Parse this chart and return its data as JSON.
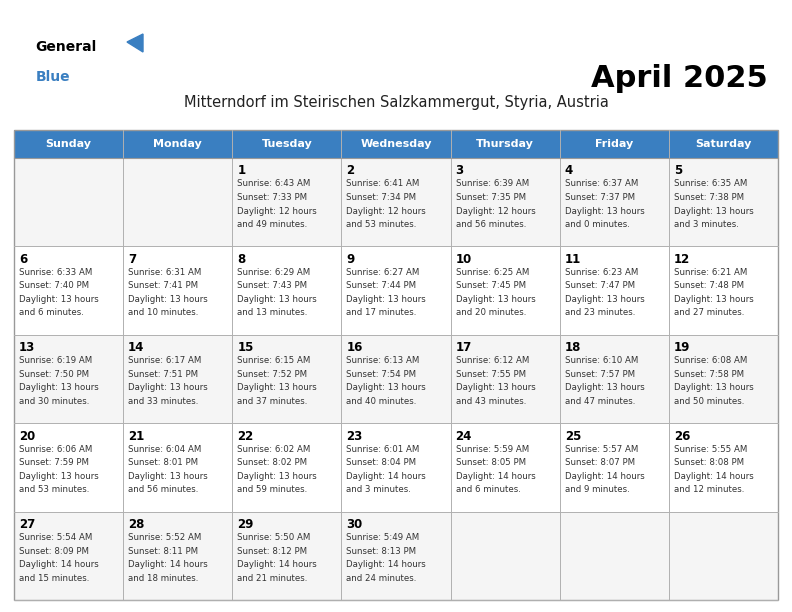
{
  "title": "April 2025",
  "subtitle": "Mitterndorf im Steirischen Salzkammergut, Styria, Austria",
  "header_color": "#3a7fc1",
  "header_text_color": "#ffffff",
  "days_of_week": [
    "Sunday",
    "Monday",
    "Tuesday",
    "Wednesday",
    "Thursday",
    "Friday",
    "Saturday"
  ],
  "title_color": "#000000",
  "subtitle_color": "#222222",
  "day_number_color": "#000000",
  "cell_text_color": "#333333",
  "weeks": [
    [
      {
        "day": "",
        "info": ""
      },
      {
        "day": "",
        "info": ""
      },
      {
        "day": "1",
        "info": "Sunrise: 6:43 AM\nSunset: 7:33 PM\nDaylight: 12 hours\nand 49 minutes."
      },
      {
        "day": "2",
        "info": "Sunrise: 6:41 AM\nSunset: 7:34 PM\nDaylight: 12 hours\nand 53 minutes."
      },
      {
        "day": "3",
        "info": "Sunrise: 6:39 AM\nSunset: 7:35 PM\nDaylight: 12 hours\nand 56 minutes."
      },
      {
        "day": "4",
        "info": "Sunrise: 6:37 AM\nSunset: 7:37 PM\nDaylight: 13 hours\nand 0 minutes."
      },
      {
        "day": "5",
        "info": "Sunrise: 6:35 AM\nSunset: 7:38 PM\nDaylight: 13 hours\nand 3 minutes."
      }
    ],
    [
      {
        "day": "6",
        "info": "Sunrise: 6:33 AM\nSunset: 7:40 PM\nDaylight: 13 hours\nand 6 minutes."
      },
      {
        "day": "7",
        "info": "Sunrise: 6:31 AM\nSunset: 7:41 PM\nDaylight: 13 hours\nand 10 minutes."
      },
      {
        "day": "8",
        "info": "Sunrise: 6:29 AM\nSunset: 7:43 PM\nDaylight: 13 hours\nand 13 minutes."
      },
      {
        "day": "9",
        "info": "Sunrise: 6:27 AM\nSunset: 7:44 PM\nDaylight: 13 hours\nand 17 minutes."
      },
      {
        "day": "10",
        "info": "Sunrise: 6:25 AM\nSunset: 7:45 PM\nDaylight: 13 hours\nand 20 minutes."
      },
      {
        "day": "11",
        "info": "Sunrise: 6:23 AM\nSunset: 7:47 PM\nDaylight: 13 hours\nand 23 minutes."
      },
      {
        "day": "12",
        "info": "Sunrise: 6:21 AM\nSunset: 7:48 PM\nDaylight: 13 hours\nand 27 minutes."
      }
    ],
    [
      {
        "day": "13",
        "info": "Sunrise: 6:19 AM\nSunset: 7:50 PM\nDaylight: 13 hours\nand 30 minutes."
      },
      {
        "day": "14",
        "info": "Sunrise: 6:17 AM\nSunset: 7:51 PM\nDaylight: 13 hours\nand 33 minutes."
      },
      {
        "day": "15",
        "info": "Sunrise: 6:15 AM\nSunset: 7:52 PM\nDaylight: 13 hours\nand 37 minutes."
      },
      {
        "day": "16",
        "info": "Sunrise: 6:13 AM\nSunset: 7:54 PM\nDaylight: 13 hours\nand 40 minutes."
      },
      {
        "day": "17",
        "info": "Sunrise: 6:12 AM\nSunset: 7:55 PM\nDaylight: 13 hours\nand 43 minutes."
      },
      {
        "day": "18",
        "info": "Sunrise: 6:10 AM\nSunset: 7:57 PM\nDaylight: 13 hours\nand 47 minutes."
      },
      {
        "day": "19",
        "info": "Sunrise: 6:08 AM\nSunset: 7:58 PM\nDaylight: 13 hours\nand 50 minutes."
      }
    ],
    [
      {
        "day": "20",
        "info": "Sunrise: 6:06 AM\nSunset: 7:59 PM\nDaylight: 13 hours\nand 53 minutes."
      },
      {
        "day": "21",
        "info": "Sunrise: 6:04 AM\nSunset: 8:01 PM\nDaylight: 13 hours\nand 56 minutes."
      },
      {
        "day": "22",
        "info": "Sunrise: 6:02 AM\nSunset: 8:02 PM\nDaylight: 13 hours\nand 59 minutes."
      },
      {
        "day": "23",
        "info": "Sunrise: 6:01 AM\nSunset: 8:04 PM\nDaylight: 14 hours\nand 3 minutes."
      },
      {
        "day": "24",
        "info": "Sunrise: 5:59 AM\nSunset: 8:05 PM\nDaylight: 14 hours\nand 6 minutes."
      },
      {
        "day": "25",
        "info": "Sunrise: 5:57 AM\nSunset: 8:07 PM\nDaylight: 14 hours\nand 9 minutes."
      },
      {
        "day": "26",
        "info": "Sunrise: 5:55 AM\nSunset: 8:08 PM\nDaylight: 14 hours\nand 12 minutes."
      }
    ],
    [
      {
        "day": "27",
        "info": "Sunrise: 5:54 AM\nSunset: 8:09 PM\nDaylight: 14 hours\nand 15 minutes."
      },
      {
        "day": "28",
        "info": "Sunrise: 5:52 AM\nSunset: 8:11 PM\nDaylight: 14 hours\nand 18 minutes."
      },
      {
        "day": "29",
        "info": "Sunrise: 5:50 AM\nSunset: 8:12 PM\nDaylight: 14 hours\nand 21 minutes."
      },
      {
        "day": "30",
        "info": "Sunrise: 5:49 AM\nSunset: 8:13 PM\nDaylight: 14 hours\nand 24 minutes."
      },
      {
        "day": "",
        "info": ""
      },
      {
        "day": "",
        "info": ""
      },
      {
        "day": "",
        "info": ""
      }
    ]
  ]
}
